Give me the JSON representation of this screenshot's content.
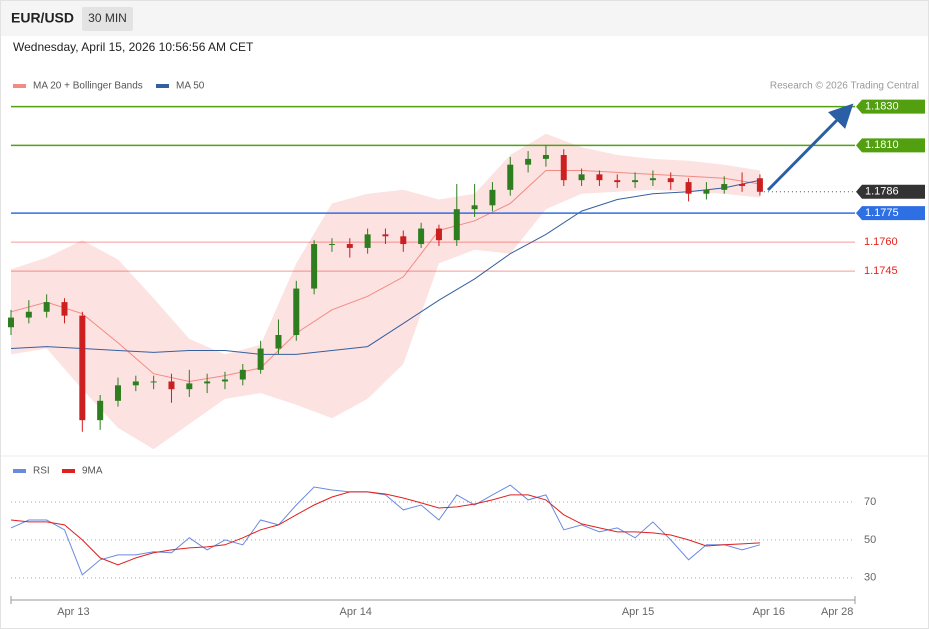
{
  "header": {
    "symbol": "EUR/USD",
    "interval": "30 MIN",
    "datetime": "Wednesday, April 15, 2026 10:56:56 AM CET",
    "credit": "Research © 2026 Trading Central"
  },
  "chart_data": [
    {
      "type": "candlestick",
      "xlim": [
        0,
        142
      ],
      "ylim": [
        1.165,
        1.1836
      ],
      "up_color": "#2e7d1f",
      "down_color": "#cc2020",
      "x": [
        0,
        3,
        6,
        9,
        12,
        15,
        18,
        21,
        24,
        27,
        30,
        33,
        36,
        39,
        42,
        45,
        48,
        51,
        54,
        57,
        60,
        63,
        66,
        69,
        72,
        75,
        78,
        81,
        84,
        87,
        90,
        93,
        96,
        99,
        102,
        105,
        108,
        111,
        114,
        117,
        120,
        123,
        126
      ],
      "open": [
        1.1716,
        1.1721,
        1.1724,
        1.1729,
        1.1722,
        1.1668,
        1.1678,
        1.1686,
        1.1688,
        1.1688,
        1.1684,
        1.1687,
        1.1688,
        1.1689,
        1.1694,
        1.1705,
        1.1712,
        1.1736,
        1.1759,
        1.1759,
        1.1757,
        1.1764,
        1.1763,
        1.1759,
        1.1767,
        1.1761,
        1.1777,
        1.1779,
        1.1787,
        1.18,
        1.1803,
        1.1805,
        1.1792,
        1.1795,
        1.1792,
        1.1791,
        1.1792,
        1.1793,
        1.1791,
        1.1785,
        1.1787,
        1.179,
        1.1793
      ],
      "high": [
        1.1725,
        1.173,
        1.1733,
        1.1731,
        1.1724,
        1.1681,
        1.169,
        1.1691,
        1.1691,
        1.1692,
        1.1694,
        1.1692,
        1.1693,
        1.1697,
        1.1709,
        1.172,
        1.174,
        1.1761,
        1.1762,
        1.1762,
        1.1767,
        1.1767,
        1.1766,
        1.177,
        1.1769,
        1.179,
        1.179,
        1.1791,
        1.1804,
        1.1807,
        1.181,
        1.1808,
        1.1798,
        1.1797,
        1.1795,
        1.1796,
        1.1797,
        1.1796,
        1.1793,
        1.1791,
        1.1794,
        1.1796,
        1.1795
      ],
      "low": [
        1.1712,
        1.1718,
        1.1721,
        1.1718,
        1.1662,
        1.1663,
        1.1675,
        1.1683,
        1.1684,
        1.1677,
        1.168,
        1.1682,
        1.1684,
        1.1686,
        1.1692,
        1.1702,
        1.1709,
        1.1733,
        1.1755,
        1.1752,
        1.1754,
        1.1759,
        1.1755,
        1.1757,
        1.1758,
        1.1758,
        1.1773,
        1.1776,
        1.1784,
        1.1796,
        1.1799,
        1.1789,
        1.1789,
        1.1789,
        1.1788,
        1.1788,
        1.1789,
        1.1787,
        1.1781,
        1.1782,
        1.1785,
        1.1786,
        1.1784
      ],
      "close": [
        1.1721,
        1.1724,
        1.1729,
        1.1722,
        1.1668,
        1.1678,
        1.1686,
        1.1688,
        1.1688,
        1.1684,
        1.1687,
        1.1688,
        1.1689,
        1.1694,
        1.1705,
        1.1712,
        1.1736,
        1.1759,
        1.1759,
        1.1757,
        1.1764,
        1.1763,
        1.1759,
        1.1767,
        1.1761,
        1.1777,
        1.1779,
        1.1787,
        1.18,
        1.1803,
        1.1805,
        1.1792,
        1.1795,
        1.1792,
        1.1791,
        1.1792,
        1.1793,
        1.1791,
        1.1785,
        1.1787,
        1.179,
        1.1789,
        1.1786
      ],
      "overlay_x": [
        0,
        6,
        12,
        18,
        24,
        30,
        36,
        42,
        48,
        54,
        60,
        66,
        72,
        78,
        84,
        90,
        96,
        102,
        108,
        114,
        120,
        126
      ],
      "overlays": [
        {
          "name": "MA 20 + Bollinger Bands",
          "color": "#f28b82",
          "band_color": "#fde2e2",
          "values": [
            1.1724,
            1.1729,
            1.1723,
            1.1708,
            1.1692,
            1.1688,
            1.1691,
            1.1695,
            1.1713,
            1.1725,
            1.1732,
            1.1742,
            1.1766,
            1.1771,
            1.178,
            1.1797,
            1.1797,
            1.1796,
            1.1795,
            1.1794,
            1.1793,
            1.179
          ],
          "upper": [
            1.1746,
            1.1752,
            1.1761,
            1.1751,
            1.1731,
            1.171,
            1.1702,
            1.1707,
            1.1749,
            1.178,
            1.1785,
            1.1787,
            1.1782,
            1.1785,
            1.1805,
            1.1816,
            1.1809,
            1.1805,
            1.1803,
            1.1802,
            1.18,
            1.1797
          ],
          "lower": [
            1.1702,
            1.1705,
            1.1684,
            1.1664,
            1.1653,
            1.1666,
            1.1679,
            1.1682,
            1.1676,
            1.1669,
            1.1679,
            1.1697,
            1.1749,
            1.1756,
            1.1754,
            1.1777,
            1.1785,
            1.1786,
            1.1787,
            1.1786,
            1.1785,
            1.1783
          ]
        },
        {
          "name": "MA 50",
          "color": "#35609f",
          "values": [
            1.1705,
            1.1706,
            1.1705,
            1.1704,
            1.1703,
            1.1704,
            1.1704,
            1.1702,
            1.1702,
            1.1704,
            1.1706,
            1.1718,
            1.173,
            1.1741,
            1.1754,
            1.1764,
            1.1776,
            1.1782,
            1.1785,
            1.1786,
            1.1788,
            1.1792
          ]
        }
      ],
      "levels": [
        {
          "value": 1.183,
          "label": "1.1830",
          "color": "#52a010",
          "style": "box"
        },
        {
          "value": 1.181,
          "label": "1.1810",
          "color": "#52a010",
          "style": "box"
        },
        {
          "value": 1.1786,
          "label": "1.1786",
          "color": "#333333",
          "style": "current"
        },
        {
          "value": 1.1775,
          "label": "1.1775",
          "color": "#2f6fe4",
          "style": "box"
        },
        {
          "value": 1.176,
          "label": "1.1760",
          "color": "#e8231d",
          "style": "text"
        },
        {
          "value": 1.1745,
          "label": "1.1745",
          "color": "#e8231d",
          "style": "text"
        }
      ]
    },
    {
      "type": "line",
      "xlim": [
        0,
        142
      ],
      "ylim": [
        22,
        90
      ],
      "yticks": [
        30,
        50,
        70
      ],
      "grid": true,
      "xticks": [
        {
          "value": 10.5,
          "label": "Apr 13"
        },
        {
          "value": 58,
          "label": "Apr 14"
        },
        {
          "value": 105.5,
          "label": "Apr 15"
        },
        {
          "value": 127.5,
          "label": "Apr 16"
        },
        {
          "value": 139,
          "label": "Apr 28"
        }
      ],
      "x": [
        0,
        3,
        6,
        9,
        12,
        15,
        18,
        21,
        24,
        27,
        30,
        33,
        36,
        39,
        42,
        45,
        48,
        51,
        54,
        57,
        60,
        63,
        66,
        69,
        72,
        75,
        78,
        81,
        84,
        87,
        90,
        93,
        96,
        99,
        102,
        105,
        108,
        111,
        114,
        117,
        120,
        123,
        126
      ],
      "series": [
        {
          "name": "RSI",
          "color": "#6a8ae0",
          "values": [
            56.3,
            60.5,
            60.5,
            55.3,
            31.6,
            39.5,
            42.1,
            42.1,
            43.7,
            43.2,
            51.1,
            44.7,
            50.0,
            47.4,
            60.5,
            57.9,
            68.4,
            77.9,
            76.3,
            75.3,
            75.3,
            73.7,
            65.8,
            68.4,
            60.5,
            73.7,
            68.4,
            73.7,
            78.9,
            71.1,
            73.7,
            55.3,
            57.9,
            54.2,
            56.3,
            51.1,
            59.5,
            50.0,
            39.5,
            47.4,
            47.4,
            44.7,
            47.4
          ]
        },
        {
          "name": "9MA",
          "color": "#e02020",
          "values": [
            60.5,
            59.5,
            59.5,
            57.9,
            50.0,
            40.5,
            36.8,
            40.5,
            43.2,
            44.7,
            45.8,
            46.3,
            47.4,
            51.1,
            55.3,
            57.9,
            63.2,
            68.4,
            72.6,
            75.3,
            75.3,
            74.2,
            72.1,
            69.5,
            66.8,
            67.4,
            68.9,
            71.1,
            73.7,
            73.7,
            71.1,
            63.2,
            58.4,
            56.3,
            54.2,
            54.2,
            53.7,
            52.6,
            50.0,
            46.8,
            47.4,
            47.9,
            48.4
          ]
        }
      ]
    }
  ]
}
